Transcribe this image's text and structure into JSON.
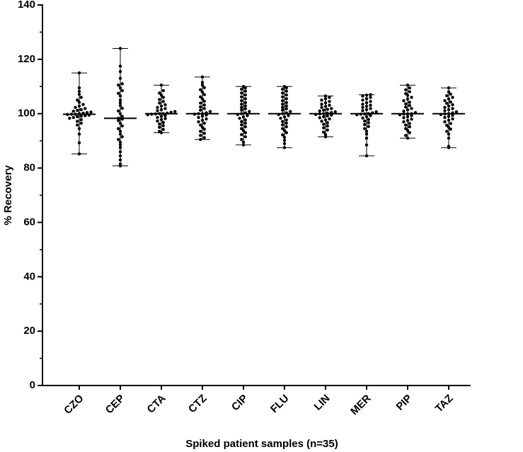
{
  "chart_data": {
    "type": "dot",
    "xlabel": "Spiked patient samples (n=35)",
    "ylabel": "% Recovery",
    "categories": [
      "CZO",
      "CEP",
      "CTA",
      "CTZ",
      "CIP",
      "FLU",
      "LIN",
      "MER",
      "PIP",
      "TAZ"
    ],
    "values": [
      [
        85.2,
        89.3,
        92.5,
        94.5,
        95.8,
        96.5,
        97.2,
        97.8,
        98.3,
        98.6,
        98.9,
        99.1,
        99.3,
        99.5,
        99.7,
        99.8,
        99.8,
        100.0,
        100.2,
        100.4,
        100.6,
        100.9,
        101.2,
        101.5,
        101.9,
        102.3,
        102.8,
        103.4,
        104.2,
        105.0,
        106.0,
        107.1,
        108.2,
        109.5,
        115.0
      ],
      [
        80.8,
        81.5,
        83.0,
        84.5,
        86.0,
        87.5,
        88.5,
        89.5,
        90.5,
        91.5,
        92.5,
        93.5,
        94.5,
        95.5,
        96.5,
        97.5,
        98.0,
        98.3,
        99.0,
        100.0,
        101.0,
        102.0,
        103.0,
        104.0,
        105.0,
        106.5,
        107.5,
        108.5,
        109.5,
        110.5,
        111.0,
        113.0,
        115.5,
        117.5,
        124.0
      ],
      [
        93.0,
        93.5,
        94.2,
        95.0,
        95.6,
        96.2,
        96.8,
        97.3,
        97.8,
        98.2,
        98.6,
        99.0,
        99.3,
        99.6,
        99.8,
        99.9,
        100.0,
        100.0,
        100.2,
        100.5,
        100.8,
        101.1,
        101.5,
        101.9,
        102.3,
        102.8,
        103.3,
        103.9,
        104.5,
        105.2,
        106.0,
        106.8,
        107.6,
        108.5,
        110.5
      ],
      [
        90.5,
        91.2,
        92.0,
        92.8,
        93.5,
        94.3,
        95.0,
        95.8,
        96.5,
        97.0,
        97.6,
        98.1,
        98.6,
        99.1,
        99.5,
        99.8,
        100.0,
        100.0,
        100.3,
        100.8,
        101.3,
        101.9,
        102.5,
        103.2,
        103.9,
        104.6,
        105.4,
        106.2,
        107.0,
        107.9,
        108.8,
        109.6,
        110.5,
        111.5,
        113.5
      ],
      [
        88.5,
        89.5,
        90.5,
        91.5,
        92.3,
        93.0,
        93.8,
        94.5,
        95.2,
        95.9,
        96.5,
        97.1,
        97.7,
        98.3,
        98.8,
        99.3,
        99.7,
        100.0,
        100.3,
        100.8,
        101.3,
        101.8,
        102.3,
        102.9,
        103.5,
        104.1,
        104.8,
        105.5,
        106.2,
        106.9,
        107.6,
        108.3,
        109.0,
        109.5,
        110.0
      ],
      [
        87.5,
        89.0,
        90.2,
        91.3,
        92.2,
        93.0,
        93.8,
        94.5,
        95.2,
        95.9,
        96.5,
        97.1,
        97.7,
        98.3,
        98.8,
        99.3,
        99.7,
        100.0,
        100.3,
        100.8,
        101.3,
        101.8,
        102.3,
        102.9,
        103.5,
        104.1,
        104.8,
        105.5,
        106.2,
        106.9,
        107.6,
        108.3,
        109.0,
        109.5,
        110.0
      ],
      [
        91.5,
        92.3,
        93.2,
        94.0,
        94.8,
        95.5,
        96.1,
        96.7,
        97.2,
        97.7,
        98.1,
        98.5,
        98.9,
        99.2,
        99.5,
        99.7,
        99.9,
        100.0,
        100.2,
        100.4,
        100.7,
        101.0,
        101.3,
        101.6,
        101.9,
        102.3,
        102.7,
        103.1,
        103.5,
        104.0,
        104.5,
        105.0,
        105.5,
        106.0,
        106.5
      ],
      [
        84.5,
        88.5,
        91.0,
        92.5,
        93.5,
        94.5,
        95.3,
        96.0,
        96.7,
        97.3,
        97.9,
        98.4,
        98.9,
        99.3,
        99.6,
        99.8,
        99.9,
        100.0,
        100.3,
        100.7,
        101.1,
        101.5,
        101.9,
        102.3,
        102.7,
        103.1,
        103.5,
        104.0,
        104.5,
        105.0,
        105.5,
        106.0,
        106.5,
        106.8,
        107.0
      ],
      [
        91.0,
        92.0,
        93.0,
        93.8,
        94.5,
        95.2,
        95.8,
        96.4,
        97.0,
        97.5,
        98.0,
        98.5,
        98.9,
        99.3,
        99.6,
        99.8,
        99.9,
        100.0,
        100.4,
        100.9,
        101.4,
        101.9,
        102.4,
        103.0,
        103.6,
        104.2,
        104.8,
        105.4,
        106.0,
        106.7,
        107.4,
        108.1,
        108.8,
        109.5,
        110.5
      ],
      [
        87.5,
        88.0,
        91.0,
        92.5,
        93.5,
        94.3,
        95.0,
        95.7,
        96.4,
        97.0,
        97.6,
        98.1,
        98.6,
        99.0,
        99.4,
        99.7,
        99.9,
        100.0,
        100.3,
        100.7,
        101.1,
        101.5,
        101.9,
        102.3,
        102.8,
        103.3,
        103.8,
        104.3,
        104.8,
        105.4,
        106.0,
        106.6,
        107.2,
        108.0,
        109.5
      ]
    ],
    "medians": [
      99.8,
      98.3,
      100.0,
      100.0,
      100.0,
      100.0,
      100.0,
      100.0,
      100.0,
      100.0
    ],
    "mins": [
      85.2,
      80.8,
      93.0,
      90.5,
      88.5,
      87.5,
      91.5,
      84.5,
      91.0,
      87.5
    ],
    "maxs": [
      115.0,
      124.0,
      110.5,
      113.5,
      110.0,
      110.0,
      106.5,
      107.0,
      110.5,
      109.5
    ],
    "color": "#000000",
    "ylim": [
      0,
      140
    ],
    "yticks": [
      0,
      20,
      40,
      60,
      80,
      100,
      120,
      140
    ],
    "yminorticks": [
      10,
      30,
      50,
      70,
      90,
      110,
      130
    ]
  }
}
